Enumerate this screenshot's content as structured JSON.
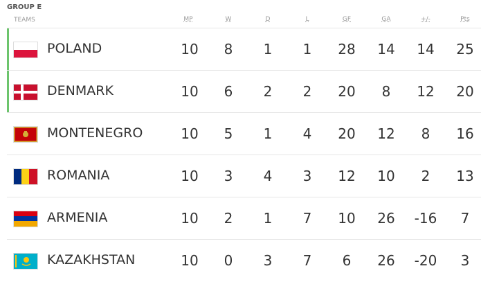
{
  "group_title": "GROUP E",
  "headers": {
    "teams": "TEAMS",
    "mp": "MP",
    "w": "W",
    "d": "D",
    "l": "L",
    "gf": "GF",
    "ga": "GA",
    "gd": "+/-",
    "pts": "Pts"
  },
  "rows": [
    {
      "team": "POLAND",
      "flag_icon": "poland-flag-icon",
      "qualified": true,
      "mp": "10",
      "w": "8",
      "d": "1",
      "l": "1",
      "gf": "28",
      "ga": "14",
      "gd": "14",
      "pts": "25"
    },
    {
      "team": "DENMARK",
      "flag_icon": "denmark-flag-icon",
      "qualified": true,
      "mp": "10",
      "w": "6",
      "d": "2",
      "l": "2",
      "gf": "20",
      "ga": "8",
      "gd": "12",
      "pts": "20"
    },
    {
      "team": "MONTENEGRO",
      "flag_icon": "montenegro-flag-icon",
      "qualified": false,
      "mp": "10",
      "w": "5",
      "d": "1",
      "l": "4",
      "gf": "20",
      "ga": "12",
      "gd": "8",
      "pts": "16"
    },
    {
      "team": "ROMANIA",
      "flag_icon": "romania-flag-icon",
      "qualified": false,
      "mp": "10",
      "w": "3",
      "d": "4",
      "l": "3",
      "gf": "12",
      "ga": "10",
      "gd": "2",
      "pts": "13"
    },
    {
      "team": "ARMENIA",
      "flag_icon": "armenia-flag-icon",
      "qualified": false,
      "mp": "10",
      "w": "2",
      "d": "1",
      "l": "7",
      "gf": "10",
      "ga": "26",
      "gd": "-16",
      "pts": "7"
    },
    {
      "team": "KAZAKHSTAN",
      "flag_icon": "kazakhstan-flag-icon",
      "qualified": false,
      "mp": "10",
      "w": "0",
      "d": "3",
      "l": "7",
      "gf": "6",
      "ga": "26",
      "gd": "-20",
      "pts": "3"
    }
  ],
  "colors": {
    "qualified_bar": "#6cc46c",
    "row_divider": "#e6e6e6",
    "header_text": "#999999"
  }
}
